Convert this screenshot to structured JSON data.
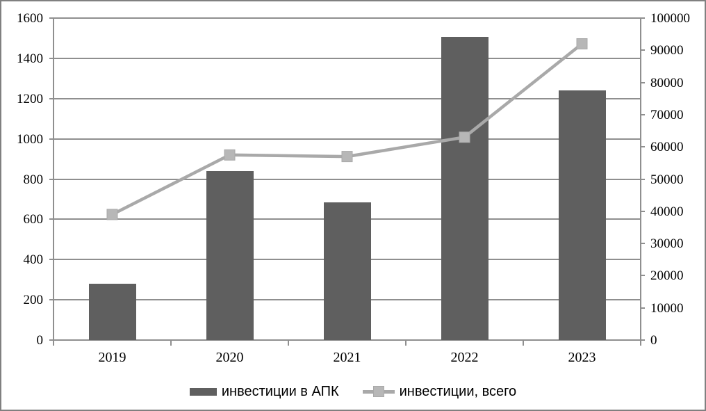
{
  "chart_data": {
    "type": "combo",
    "categories": [
      "2019",
      "2020",
      "2021",
      "2022",
      "2023"
    ],
    "series": [
      {
        "name": "инвестиции в АПК",
        "type": "bar",
        "axis": "left",
        "values": [
          280,
          840,
          685,
          1505,
          1240
        ],
        "color": "#5f5f5f"
      },
      {
        "name": "инвестиции, всего",
        "type": "line",
        "axis": "right",
        "values": [
          39000,
          57500,
          57000,
          63000,
          92000
        ],
        "color": "#a9a9a9",
        "marker": "square",
        "marker_color": "#b7b7b7"
      }
    ],
    "left_axis": {
      "min": 0,
      "max": 1600,
      "step": 200,
      "ticks": [
        "0",
        "200",
        "400",
        "600",
        "800",
        "1000",
        "1200",
        "1400",
        "1600"
      ]
    },
    "right_axis": {
      "min": 0,
      "max": 100000,
      "step": 10000,
      "ticks": [
        "0",
        "10000",
        "20000",
        "30000",
        "40000",
        "50000",
        "60000",
        "70000",
        "80000",
        "90000",
        "100000"
      ]
    },
    "grid": true,
    "legend_position": "bottom",
    "colors": {
      "grid": "#8f8f8f",
      "text": "#000000",
      "background": "#ffffff",
      "frame_border": "#808080"
    }
  }
}
